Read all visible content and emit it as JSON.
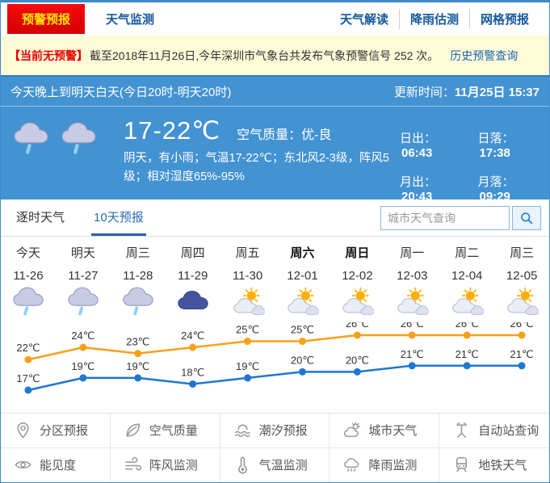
{
  "nav": {
    "active_tab": "预警预报",
    "tab2": "天气监测",
    "links": [
      "天气解读",
      "降雨估测",
      "网格预报"
    ]
  },
  "alert": {
    "tag": "【当前无预警】",
    "text": "截至2018年11月26日,今年深圳市气象台共发布气象预警信号 252 次。",
    "link": "历史预警查询"
  },
  "current": {
    "title": "今天晚上到明天白天(今日20时-明天20时)",
    "update_label": "更新时间：",
    "update_time": "11月25日 15:37",
    "temp_range": "17-22℃",
    "air_label": "空气质量：",
    "air_value": "优-良",
    "description": "阴天，有小雨；气温17-22℃；东北风2-3级，阵风5级；相对湿度65%-95%",
    "condition_icons": [
      "rain",
      "rain"
    ],
    "sun_moon": [
      {
        "label": "日出：",
        "value": "06:43"
      },
      {
        "label": "日落：",
        "value": "17:38"
      },
      {
        "label": "月出：",
        "value": "20:43"
      },
      {
        "label": "月落：",
        "value": "09:29"
      }
    ]
  },
  "tabs": {
    "hourly": "逐时天气",
    "ten_day": "10天预报"
  },
  "search": {
    "placeholder": "城市天气查询"
  },
  "forecast": {
    "columns": [
      {
        "day": "今天",
        "date": "11-26",
        "icon": "rain",
        "bold": false
      },
      {
        "day": "明天",
        "date": "11-27",
        "icon": "rain",
        "bold": false
      },
      {
        "day": "周三",
        "date": "11-28",
        "icon": "rain",
        "bold": false
      },
      {
        "day": "周四",
        "date": "11-29",
        "icon": "overcast",
        "bold": false
      },
      {
        "day": "周五",
        "date": "11-30",
        "icon": "partly-cloudy",
        "bold": false
      },
      {
        "day": "周六",
        "date": "12-01",
        "icon": "partly-cloudy",
        "bold": true
      },
      {
        "day": "周日",
        "date": "12-02",
        "icon": "partly-cloudy",
        "bold": true
      },
      {
        "day": "周一",
        "date": "12-03",
        "icon": "partly-cloudy",
        "bold": false
      },
      {
        "day": "周二",
        "date": "12-04",
        "icon": "partly-cloudy",
        "bold": false
      },
      {
        "day": "周三",
        "date": "12-05",
        "icon": "partly-cloudy",
        "bold": false
      }
    ]
  },
  "chart_data": {
    "type": "line",
    "categories": [
      "11-26",
      "11-27",
      "11-28",
      "11-29",
      "11-30",
      "12-01",
      "12-02",
      "12-03",
      "12-04",
      "12-05"
    ],
    "series": [
      {
        "name": "high",
        "color": "#f9a01b",
        "values": [
          22,
          24,
          23,
          24,
          25,
          25,
          26,
          26,
          26,
          26
        ]
      },
      {
        "name": "low",
        "color": "#1e77d0",
        "values": [
          17,
          19,
          19,
          18,
          19,
          20,
          20,
          21,
          21,
          21
        ]
      }
    ],
    "unit": "℃",
    "ylim": [
      17,
      26
    ],
    "grid": false,
    "point_labels": true,
    "legend": "none"
  },
  "footer": {
    "items": [
      {
        "label": "分区预报",
        "icon": "location-pin"
      },
      {
        "label": "空气质量",
        "icon": "leaf"
      },
      {
        "label": "潮汐预报",
        "icon": "tide-wave"
      },
      {
        "label": "城市天气",
        "icon": "sun-cloud"
      },
      {
        "label": "自动站查询",
        "icon": "weather-station"
      },
      {
        "label": "能见度",
        "icon": "eye"
      },
      {
        "label": "阵风监测",
        "icon": "wind"
      },
      {
        "label": "气温监测",
        "icon": "thermometer"
      },
      {
        "label": "降雨监测",
        "icon": "rain-cloud"
      },
      {
        "label": "地铁天气",
        "icon": "metro-train"
      }
    ]
  },
  "colors": {
    "page_border": "#3e8acc",
    "panel_blue": "#4392d2",
    "alert_bg": "#fefbd7",
    "tab_red": "#e10000",
    "tab_red_text": "#ffe400",
    "link_blue": "#15589e",
    "chart_high": "#f9a01b",
    "chart_low": "#1e77d0"
  }
}
